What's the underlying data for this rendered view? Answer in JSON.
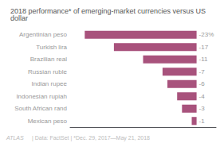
{
  "chart_data": {
    "type": "bar",
    "title": "2018 performance* of emerging-market currencies versus US dollar",
    "orientation": "horizontal",
    "categories": [
      "Argentinian peso",
      "Turkish lira",
      "Brazilian real",
      "Russian ruble",
      "Indian rupee",
      "Indonesian rupiah",
      "South African rand",
      "Mexican peso"
    ],
    "values": [
      -23,
      -17,
      -11,
      -7,
      -6,
      -4,
      -3,
      -1
    ],
    "value_labels": [
      "-23%",
      "-17",
      "-11",
      "-7",
      "-6",
      "-4",
      "-3",
      "-1"
    ],
    "data_labels": true,
    "color": "#a8527c",
    "xlim": [
      -26,
      4
    ],
    "grid": false,
    "tick_labels": "y",
    "annotations": [
      "ATLAS",
      "| Data: FactSet | *Dec. 29, 2017—May 21, 2018"
    ]
  }
}
